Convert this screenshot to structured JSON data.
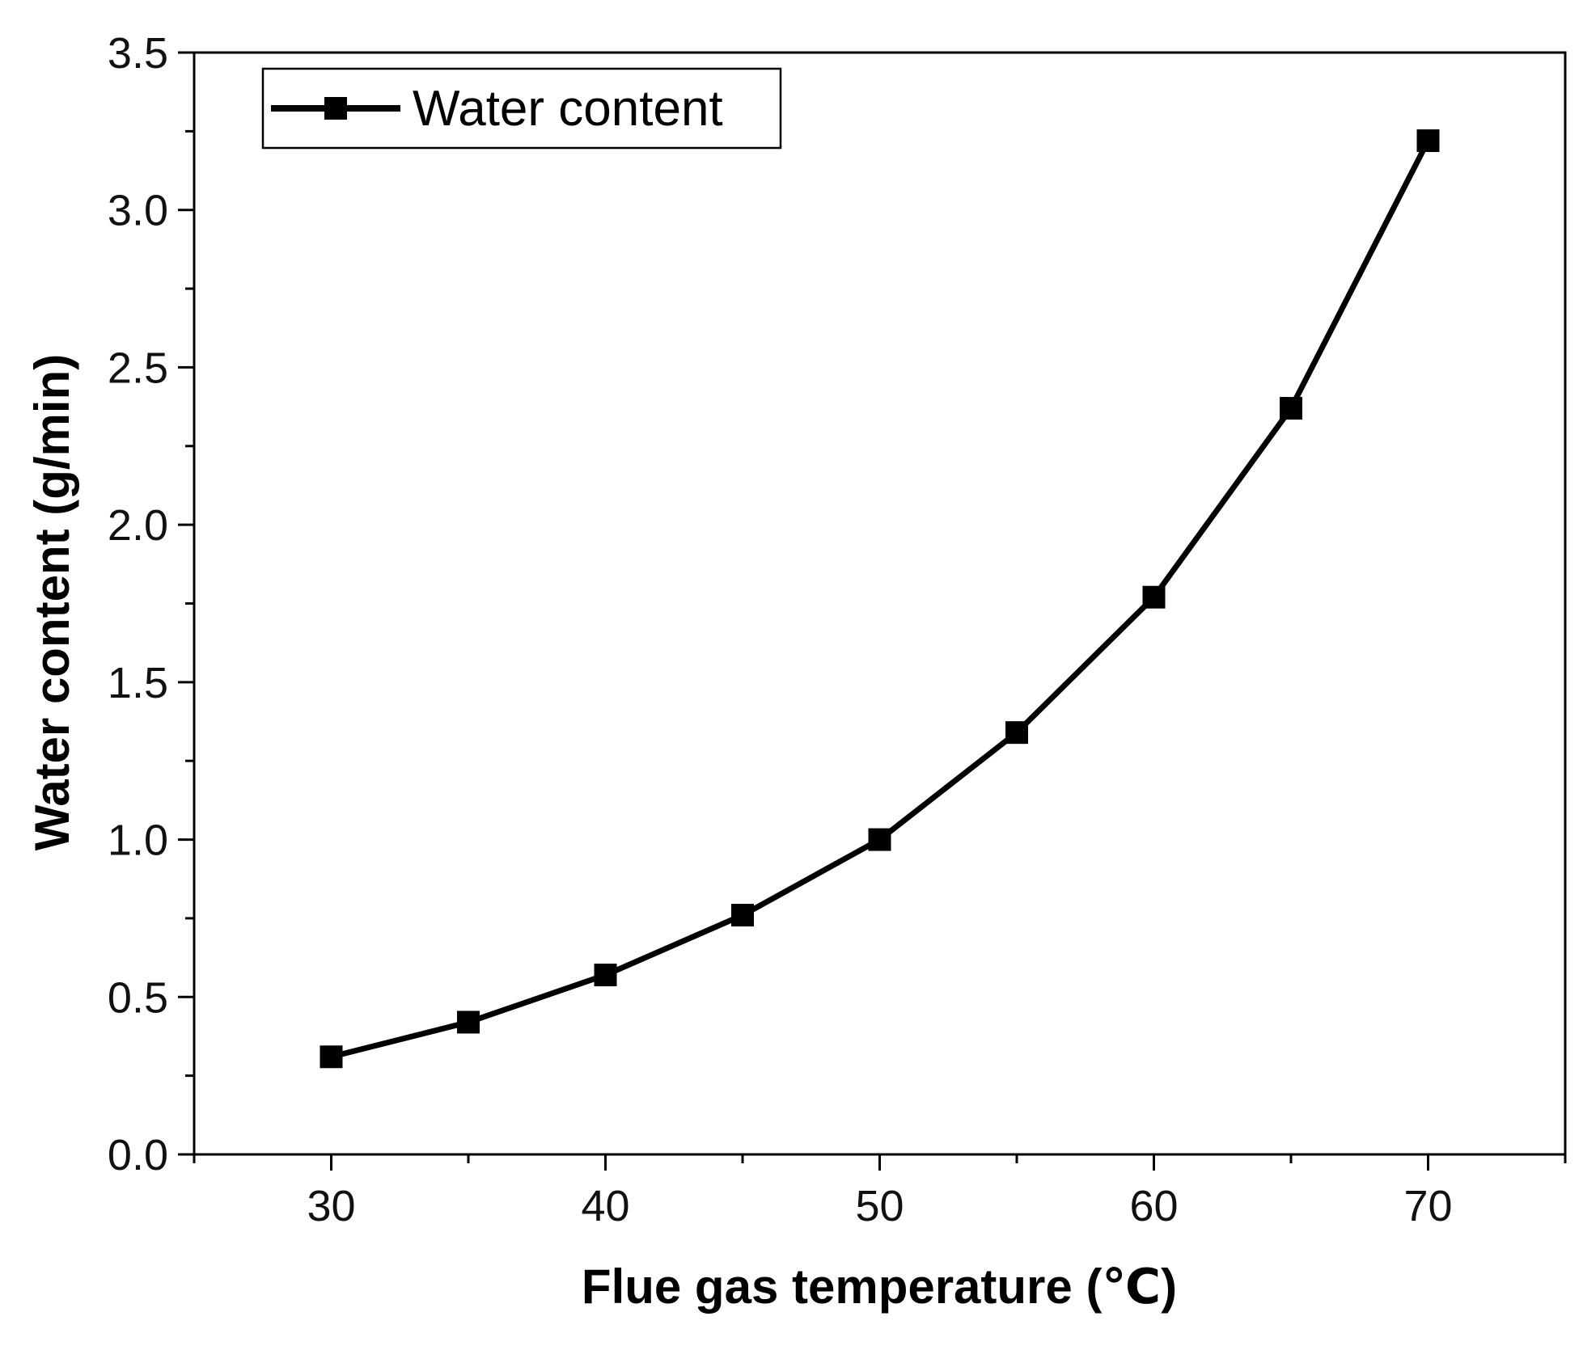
{
  "chart_data": {
    "type": "line",
    "title": "",
    "xlabel": "Flue gas temperature (℃)",
    "ylabel": "Water content (g/min)",
    "xlim": [
      25,
      75
    ],
    "ylim": [
      0,
      3.5
    ],
    "xticks": [
      30,
      40,
      50,
      60,
      70
    ],
    "xtick_labels": [
      "30",
      "40",
      "50",
      "60",
      "70"
    ],
    "yticks": [
      0.0,
      0.5,
      1.0,
      1.5,
      2.0,
      2.5,
      3.0,
      3.5
    ],
    "ytick_labels": [
      "0.0",
      "0.5",
      "1.0",
      "1.5",
      "2.0",
      "2.5",
      "3.0",
      "3.5"
    ],
    "x": [
      30,
      35,
      40,
      45,
      50,
      55,
      60,
      65,
      70
    ],
    "series": [
      {
        "name": "Water content",
        "values": [
          0.31,
          0.42,
          0.57,
          0.76,
          1.0,
          1.34,
          1.77,
          2.37,
          3.22
        ],
        "marker": "square",
        "color": "#000000"
      }
    ],
    "grid": false,
    "legend_position": "top-left"
  }
}
